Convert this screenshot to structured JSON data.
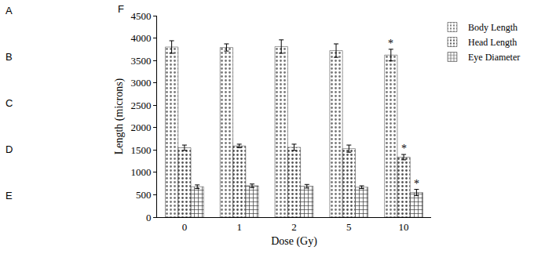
{
  "panel_labels": [
    "A",
    "B",
    "C",
    "D",
    "E",
    "F"
  ],
  "chart_data": {
    "type": "bar",
    "x_label": "Dose (Gy)",
    "y_label": "Length (microns)",
    "categories": [
      "0",
      "1",
      "2",
      "5",
      "10"
    ],
    "series": [
      {
        "name": "Body Length",
        "color": "#f4f4f4",
        "values": [
          3800,
          3790,
          3810,
          3720,
          3620
        ],
        "errors": [
          140,
          80,
          150,
          150,
          130
        ]
      },
      {
        "name": "Head Length",
        "color": "#a6a6a6",
        "values": [
          1550,
          1590,
          1560,
          1530,
          1340
        ],
        "errors": [
          60,
          40,
          70,
          80,
          60
        ]
      },
      {
        "name": "Eye Diameter",
        "color": "#7a7a7a",
        "values": [
          680,
          700,
          690,
          670,
          550
        ],
        "errors": [
          40,
          40,
          40,
          30,
          70
        ]
      }
    ],
    "ylim": [
      0,
      4500
    ],
    "yticks": [
      0,
      500,
      1000,
      1500,
      2000,
      2500,
      3000,
      3500,
      4000,
      4500
    ],
    "grid": false,
    "legend": "top right",
    "annotations": [
      {
        "text": "*",
        "category": "10",
        "series": "Body Length"
      },
      {
        "text": "*",
        "category": "10",
        "series": "Head Length"
      },
      {
        "text": "*",
        "category": "10",
        "series": "Eye Diameter"
      }
    ]
  }
}
